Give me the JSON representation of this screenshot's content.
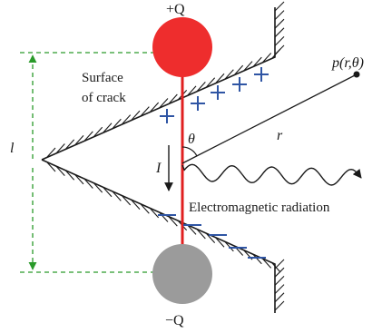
{
  "labels": {
    "top_charge": "+Q",
    "bottom_charge": "−Q",
    "surface_line1": "Surface",
    "surface_line2": "of crack",
    "point": "p(r,θ)",
    "r": "r",
    "theta": "θ",
    "current": "I",
    "radiation": "Electromagnetic radiation",
    "length": "l"
  },
  "colors": {
    "positive_charge": "#ee2d2d",
    "negative_charge": "#9b9b9b",
    "dipole_line": "#e02020",
    "sign_marks": "#2f55a4",
    "dimension_lines": "#2a9a2a",
    "ink": "#1a1a1a"
  }
}
